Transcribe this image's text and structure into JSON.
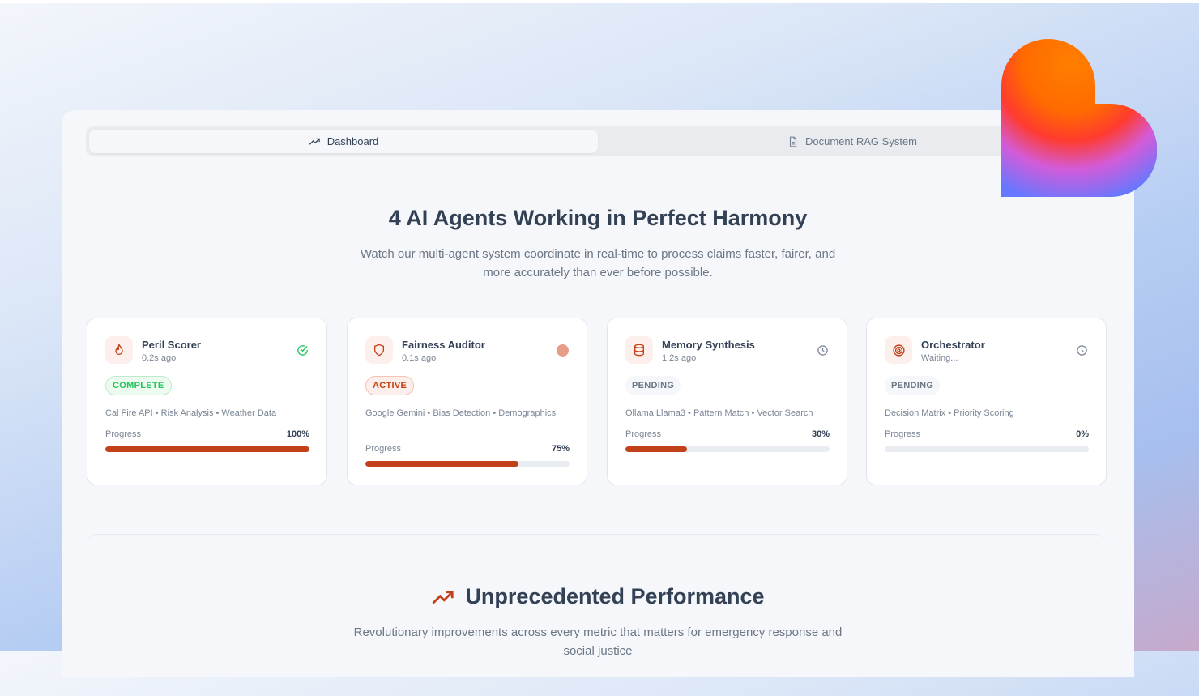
{
  "tabs": [
    {
      "label": "Dashboard",
      "icon": "trending-up-icon",
      "active": true
    },
    {
      "label": "Document RAG System",
      "icon": "document-icon",
      "active": false
    }
  ],
  "hero": {
    "title": "4 AI Agents Working in Perfect Harmony",
    "subtitle": "Watch our multi-agent system coordinate in real-time to process claims faster, fairer, and more accurately than ever before possible."
  },
  "agents": [
    {
      "name": "Peril Scorer",
      "time": "0.2s ago",
      "icon": "flame-icon",
      "status_icon": "check-circle-icon",
      "badge": "COMPLETE",
      "tags": "Cal Fire API • Risk Analysis • Weather Data",
      "progress_label": "Progress",
      "progress": "100%",
      "progress_value": 100
    },
    {
      "name": "Fairness Auditor",
      "time": "0.1s ago",
      "icon": "shield-icon",
      "status_icon": "active-dot-icon",
      "badge": "ACTIVE",
      "tags": "Google Gemini • Bias Detection • Demographics",
      "progress_label": "Progress",
      "progress": "75%",
      "progress_value": 75
    },
    {
      "name": "Memory Synthesis",
      "time": "1.2s ago",
      "icon": "database-icon",
      "status_icon": "clock-icon",
      "badge": "PENDING",
      "tags": "Ollama Llama3 • Pattern Match • Vector Search",
      "progress_label": "Progress",
      "progress": "30%",
      "progress_value": 30
    },
    {
      "name": "Orchestrator",
      "time": "Waiting...",
      "icon": "target-icon",
      "status_icon": "clock-icon",
      "badge": "PENDING",
      "tags": "Decision Matrix • Priority Scoring",
      "progress_label": "Progress",
      "progress": "0%",
      "progress_value": 0
    }
  ],
  "performance": {
    "title": "Unprecedented Performance",
    "subtitle": "Revolutionary improvements across every metric that matters for emergency response and social justice"
  },
  "colors": {
    "accent": "#c2401a",
    "complete": "#22c55e",
    "text": "#334155"
  }
}
